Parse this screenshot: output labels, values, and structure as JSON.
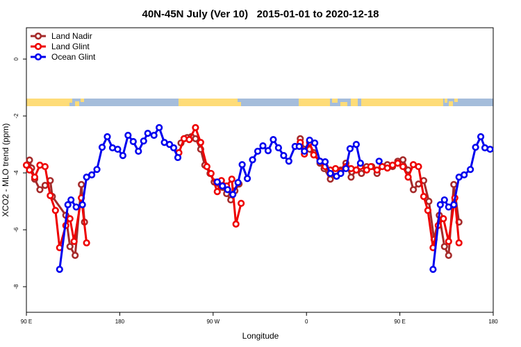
{
  "chart_data": {
    "type": "line",
    "title": "40N-45N July (Ver 10)   2015-01-01 to 2020-12-18",
    "xlabel": "Longitude",
    "ylabel": "XCO2 - MLO trend (ppm)",
    "xlim": [
      90,
      540
    ],
    "ylim": [
      -8.9,
      1.1
    ],
    "xticks": [
      {
        "value": 90,
        "label": "90 E"
      },
      {
        "value": 180,
        "label": "180"
      },
      {
        "value": 270,
        "label": "90 W"
      },
      {
        "value": 360,
        "label": "0"
      },
      {
        "value": 450,
        "label": "90 E"
      },
      {
        "value": 540,
        "label": "180"
      }
    ],
    "yticks": [
      0,
      -2,
      -4,
      -6,
      -8
    ],
    "legend": "top-left",
    "series": [
      {
        "name": "Land Nadir",
        "color": "#a52a2a",
        "x": [
          93,
          95,
          98,
          103,
          108,
          113,
          115,
          128,
          132,
          137,
          143,
          146,
          null,
          239,
          242,
          245,
          249,
          253,
          258,
          262,
          267,
          271,
          276,
          279,
          283,
          287,
          291,
          295,
          null,
          354,
          358,
          363,
          367,
          373,
          377,
          383,
          388,
          393,
          398,
          403,
          408,
          413,
          418,
          423,
          428,
          433,
          438,
          443,
          448,
          453,
          458,
          463,
          468,
          473,
          478,
          483,
          488,
          493,
          497,
          502,
          507
        ],
        "values": [
          -3.55,
          -3.83,
          -4.22,
          -4.59,
          -4.44,
          -4.27,
          -4.83,
          -5.49,
          -6.59,
          -6.9,
          -4.41,
          -5.73,
          null,
          -2.95,
          -2.8,
          -2.76,
          -2.73,
          -2.8,
          -3.17,
          -3.73,
          -4.02,
          -4.32,
          -4.39,
          -4.51,
          -4.73,
          -4.95,
          -4.63,
          -4.39,
          null,
          -2.8,
          -3.17,
          -3.17,
          -3.29,
          -3.66,
          -3.85,
          -4.22,
          -3.95,
          -3.9,
          -3.66,
          -4.15,
          -3.9,
          -4.02,
          -3.78,
          -3.78,
          -4.02,
          -3.78,
          -3.71,
          -3.78,
          -3.59,
          -3.54,
          -3.9,
          -4.59,
          -4.39,
          -4.27,
          -5.0,
          -6.34,
          -5.49,
          -6.59,
          -6.9,
          -4.41,
          -5.73
        ]
      },
      {
        "name": "Land Glint",
        "color": "#ee0000",
        "x": [
          90,
          93,
          98,
          103,
          108,
          113,
          118,
          122,
          128,
          132,
          136,
          143,
          148,
          null,
          237,
          242,
          247,
          253,
          258,
          264,
          268,
          274,
          278,
          283,
          288,
          292,
          297,
          null,
          354,
          358,
          363,
          367,
          373,
          378,
          383,
          388,
          393,
          398,
          403,
          408,
          412,
          418,
          422,
          428,
          433,
          438,
          443,
          448,
          453,
          458,
          463,
          468,
          473,
          477,
          482,
          487,
          492,
          497,
          503,
          507
        ],
        "values": [
          -3.73,
          -3.9,
          -4.15,
          -3.73,
          -3.78,
          -4.8,
          -5.32,
          -6.63,
          -5.85,
          -5.61,
          -6.41,
          -4.88,
          -6.46,
          null,
          -3.29,
          -2.8,
          -2.83,
          -2.41,
          -2.93,
          -3.78,
          -4.02,
          -4.66,
          -4.27,
          -4.46,
          -4.22,
          -5.8,
          -5.07,
          null,
          -2.93,
          -3.34,
          -2.93,
          -3.37,
          -3.59,
          -3.78,
          -3.9,
          -3.85,
          -3.95,
          -3.78,
          -3.85,
          -3.9,
          -3.78,
          -3.9,
          -3.78,
          -3.9,
          -3.78,
          -3.83,
          -3.73,
          -3.66,
          -3.78,
          -4.15,
          -3.71,
          -3.78,
          -4.83,
          -5.32,
          -6.63,
          -5.85,
          -5.61,
          -6.41,
          -4.88,
          -6.46
        ]
      },
      {
        "name": "Ocean Glint",
        "color": "#0000ee",
        "x": [
          122,
          130,
          133,
          138,
          144,
          148,
          153,
          158,
          163,
          168,
          173,
          178,
          183,
          188,
          193,
          198,
          203,
          207,
          213,
          218,
          223,
          228,
          232,
          236,
          null,
          274,
          279,
          284,
          289,
          294,
          298,
          303,
          308,
          313,
          318,
          323,
          328,
          333,
          338,
          343,
          349,
          353,
          358,
          363,
          368,
          373,
          378,
          383,
          389,
          393,
          398,
          402,
          408,
          412,
          null,
          430,
          null,
          482,
          489,
          493,
          497,
          502,
          507,
          512,
          518,
          523,
          528,
          532,
          537
        ],
        "values": [
          -7.39,
          -5.12,
          -4.95,
          -5.2,
          -5.12,
          -4.15,
          -4.07,
          -3.88,
          -3.1,
          -2.73,
          -3.12,
          -3.17,
          -3.39,
          -2.68,
          -2.9,
          -3.24,
          -2.88,
          -2.61,
          -2.68,
          -2.41,
          -2.93,
          -3.0,
          -3.12,
          -3.46,
          null,
          -4.32,
          -4.46,
          -4.59,
          -4.76,
          -4.34,
          -3.71,
          -4.2,
          -3.54,
          -3.24,
          -3.05,
          -3.22,
          -2.83,
          -3.12,
          -3.39,
          -3.59,
          -3.07,
          -3.07,
          -3.24,
          -2.85,
          -2.95,
          -3.59,
          -3.61,
          -4.02,
          -4.12,
          -4.02,
          -3.85,
          -3.15,
          -3.0,
          -3.66,
          null,
          -3.59,
          null,
          -7.39,
          -5.12,
          -4.95,
          -5.2,
          -5.12,
          -4.15,
          -4.07,
          -3.88,
          -3.1,
          -2.73,
          -3.12,
          -3.17
        ]
      }
    ]
  }
}
